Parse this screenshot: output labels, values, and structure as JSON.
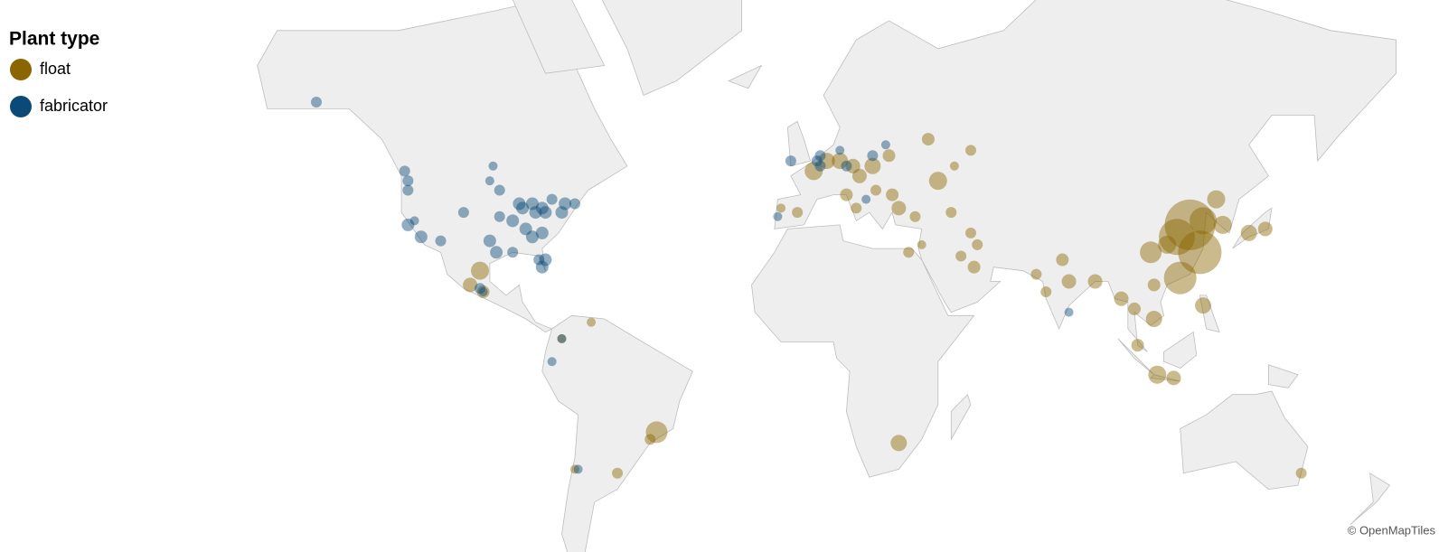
{
  "chart_data": {
    "type": "bubble-map",
    "legend_title": "Plant type",
    "attribution": "© OpenMapTiles",
    "series": [
      {
        "name": "float",
        "color": "#8a6500",
        "lon": [
          -100,
          -103,
          -99,
          -66,
          -75,
          -46,
          -48,
          -58,
          -71,
          28,
          2,
          6,
          10,
          14,
          16,
          20,
          25,
          -3,
          -8,
          12,
          15,
          21,
          26,
          28,
          37,
          40,
          45,
          50,
          33,
          44,
          50,
          52,
          51,
          47,
          35,
          31,
          70,
          73,
          78,
          80,
          88,
          96,
          100,
          106,
          106,
          121,
          107,
          112,
          101,
          117,
          113,
          120,
          114,
          105,
          125,
          127,
          135,
          140,
          151,
          110,
          121
        ],
        "lat": [
          25,
          21,
          19,
          10,
          5,
          -23,
          -25,
          -34,
          -33,
          -26,
          49,
          51,
          51,
          50,
          48,
          50,
          52,
          40,
          41,
          44,
          41,
          45,
          44,
          41,
          55,
          47,
          50,
          53,
          39,
          40,
          35,
          32,
          26,
          29,
          32,
          30,
          24,
          19,
          28,
          22,
          22,
          17,
          14,
          11,
          21,
          15,
          -6,
          -7,
          3,
          37,
          34,
          30,
          23,
          30,
          43,
          37,
          35,
          36,
          -34,
          32,
          38
        ],
        "size": [
          10,
          8,
          7,
          5,
          5,
          12,
          6,
          6,
          5,
          9,
          10,
          9,
          9,
          8,
          8,
          9,
          7,
          6,
          5,
          7,
          6,
          6,
          7,
          8,
          7,
          10,
          5,
          6,
          6,
          6,
          6,
          6,
          7,
          6,
          5,
          6,
          6,
          6,
          7,
          8,
          8,
          8,
          7,
          9,
          7,
          9,
          10,
          8,
          7,
          28,
          20,
          24,
          18,
          12,
          10,
          10,
          9,
          8,
          6,
          10,
          15
        ]
      },
      {
        "name": "fabricator",
        "color": "#0b4a78",
        "lon": [
          -150,
          -96,
          -97,
          -123,
          -122,
          -122,
          -120,
          -122,
          -118,
          -112,
          -105,
          -97,
          -95,
          -90,
          -88,
          -87,
          -84,
          -83,
          -81,
          -80,
          -75,
          -74,
          -71,
          -78,
          -86,
          -84,
          -81,
          -80,
          -81,
          -82,
          -90,
          -94,
          -94,
          -100,
          -99,
          -70,
          -75,
          -78,
          3,
          4,
          12,
          20,
          24,
          10,
          -9,
          80,
          -5,
          4,
          18
        ],
        "lat": [
          61,
          50,
          47,
          49,
          47,
          45,
          38,
          37,
          34,
          33,
          40,
          33,
          30,
          30,
          42,
          41,
          42,
          40,
          41,
          40,
          40,
          42,
          42,
          43,
          36,
          34,
          35,
          28,
          26,
          28,
          38,
          39,
          45,
          20,
          19,
          -33,
          5,
          -2,
          51,
          50,
          50,
          52,
          54,
          53,
          39,
          13,
          51,
          52,
          43
        ],
        "size": [
          6,
          5,
          5,
          6,
          6,
          6,
          5,
          7,
          7,
          6,
          6,
          7,
          7,
          6,
          7,
          7,
          7,
          7,
          7,
          7,
          7,
          7,
          6,
          6,
          7,
          7,
          7,
          7,
          7,
          6,
          7,
          6,
          6,
          6,
          5,
          5,
          5,
          5,
          6,
          6,
          6,
          6,
          5,
          5,
          5,
          5,
          6,
          6,
          5
        ]
      }
    ]
  }
}
